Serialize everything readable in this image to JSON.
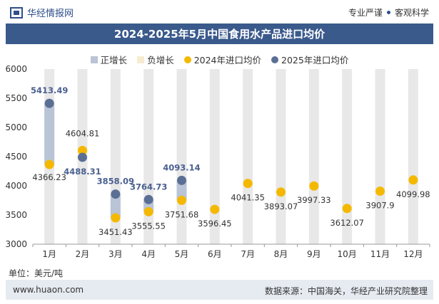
{
  "header": {
    "logo_text": "华经情报网",
    "tag1": "专业严谨",
    "tag2": "客观科学"
  },
  "unit_label": "单位：美元/吨",
  "footer": {
    "website": "www.huaon.com",
    "source": "数据来源：中国海关，华经产业研究院整理"
  },
  "colors": {
    "title_bg": "#3a5a8c",
    "pos_growth": "#b9c4d6",
    "neg_growth": "#f7ecd0",
    "y2024": "#f5b800",
    "y2025": "#5b6f95",
    "column_bg": "#e8e8e8"
  },
  "chart_data": {
    "type": "line",
    "title": "2024-2025年5月中国食用水产品进口均价",
    "categories": [
      "1月",
      "2月",
      "3月",
      "4月",
      "5月",
      "6月",
      "7月",
      "8月",
      "9月",
      "10月",
      "11月",
      "12月"
    ],
    "ylim": [
      3000,
      6000
    ],
    "yticks": [
      3000,
      3500,
      4000,
      4500,
      5000,
      5500,
      6000
    ],
    "legend": [
      "正增长",
      "负增长",
      "2024年进口均价",
      "2025年进口均价"
    ],
    "series": [
      {
        "name": "2024年进口均价",
        "values": [
          4366.23,
          4604.81,
          3451.43,
          3555.55,
          3751.68,
          3596.45,
          4041.35,
          3893.07,
          3997.33,
          3612.07,
          3907.9,
          4099.98
        ]
      },
      {
        "name": "2025年进口均价",
        "values": [
          5413.49,
          4488.31,
          3858.09,
          3764.73,
          4093.14,
          null,
          null,
          null,
          null,
          null,
          null,
          null
        ]
      }
    ],
    "labels_2024": [
      "4366.23",
      "4604.81",
      "3451.43",
      "3555.55",
      "3751.68",
      "3596.45",
      "4041.35",
      "3893.07",
      "3997.33",
      "3612.07",
      "3907.9",
      "4099.98"
    ],
    "labels_2025": [
      "5413.49",
      "4488.31",
      "3858.09",
      "3764.73",
      "4093.14"
    ]
  }
}
